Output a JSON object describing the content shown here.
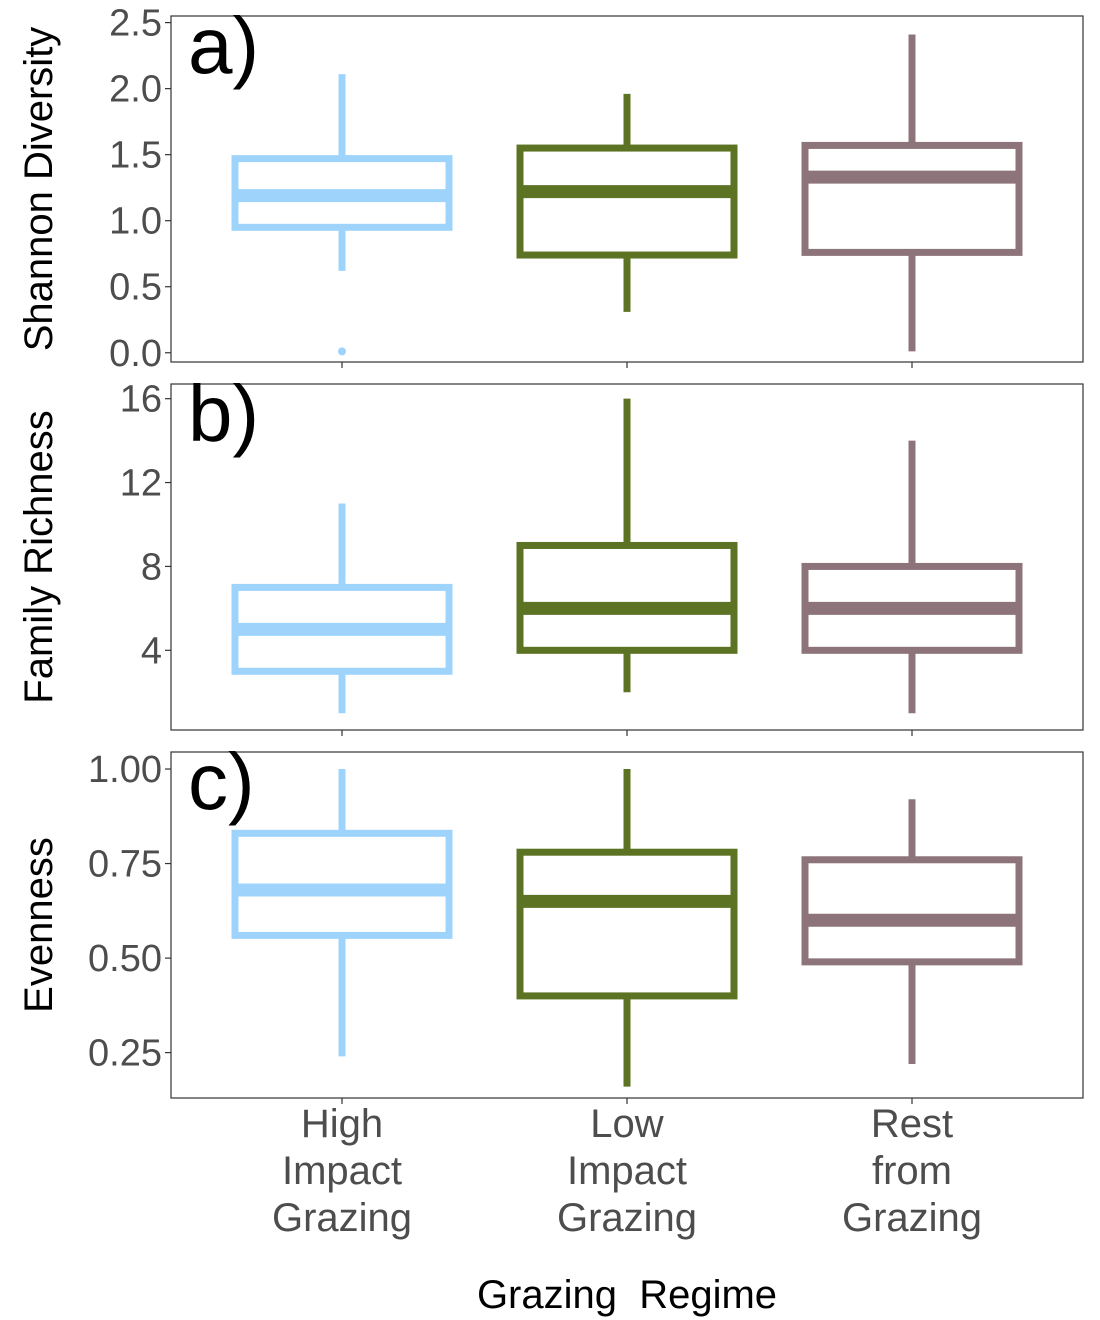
{
  "chart_data": {
    "type": "boxplot",
    "categories": [
      [
        "High",
        "Impact",
        "Grazing"
      ],
      [
        "Low",
        "Impact",
        "Grazing"
      ],
      [
        "Rest",
        "from",
        "Grazing"
      ]
    ],
    "colors": [
      "#9ed4fb",
      "#5c7324",
      "#8c747a"
    ],
    "xlabel": "Grazing  Regime",
    "panels": [
      {
        "tag": "a)",
        "ylabel": "Shannon Diversity",
        "ylim": [
          -0.07,
          2.55
        ],
        "ticks": [
          0.0,
          0.5,
          1.0,
          1.5,
          2.0,
          2.5
        ],
        "tick_labels": [
          "0.0",
          "0.5",
          "1.0",
          "1.5",
          "2.0",
          "2.5"
        ],
        "boxes": [
          {
            "whisker_low": 0.62,
            "q1": 0.95,
            "median": 1.19,
            "q3": 1.47,
            "whisker_high": 2.11,
            "outliers": [
              0.01
            ]
          },
          {
            "whisker_low": 0.31,
            "q1": 0.74,
            "median": 1.22,
            "q3": 1.55,
            "whisker_high": 1.96,
            "outliers": []
          },
          {
            "whisker_low": 0.01,
            "q1": 0.76,
            "median": 1.33,
            "q3": 1.57,
            "whisker_high": 2.41,
            "outliers": []
          }
        ]
      },
      {
        "tag": "b)",
        "ylabel": "Family Richness",
        "ylim": [
          0.2,
          16.7
        ],
        "ticks": [
          4,
          8,
          12,
          16
        ],
        "tick_labels": [
          "4",
          "8",
          "12",
          "16"
        ],
        "boxes": [
          {
            "whisker_low": 1,
            "q1": 3,
            "median": 5,
            "q3": 7,
            "whisker_high": 11,
            "outliers": []
          },
          {
            "whisker_low": 2,
            "q1": 4,
            "median": 6,
            "q3": 9,
            "whisker_high": 16,
            "outliers": []
          },
          {
            "whisker_low": 1,
            "q1": 4,
            "median": 6,
            "q3": 8,
            "whisker_high": 14,
            "outliers": []
          }
        ]
      },
      {
        "tag": "c)",
        "ylabel": "Evenness",
        "ylim": [
          0.13,
          1.045
        ],
        "ticks": [
          0.25,
          0.5,
          0.75,
          1.0
        ],
        "tick_labels": [
          "0.25",
          "0.50",
          "0.75",
          "1.00"
        ],
        "boxes": [
          {
            "whisker_low": 0.24,
            "q1": 0.56,
            "median": 0.68,
            "q3": 0.83,
            "whisker_high": 1.0,
            "outliers": []
          },
          {
            "whisker_low": 0.16,
            "q1": 0.4,
            "median": 0.65,
            "q3": 0.78,
            "whisker_high": 1.0,
            "outliers": []
          },
          {
            "whisker_low": 0.22,
            "q1": 0.49,
            "median": 0.6,
            "q3": 0.76,
            "whisker_high": 0.92,
            "outliers": []
          }
        ]
      }
    ]
  }
}
